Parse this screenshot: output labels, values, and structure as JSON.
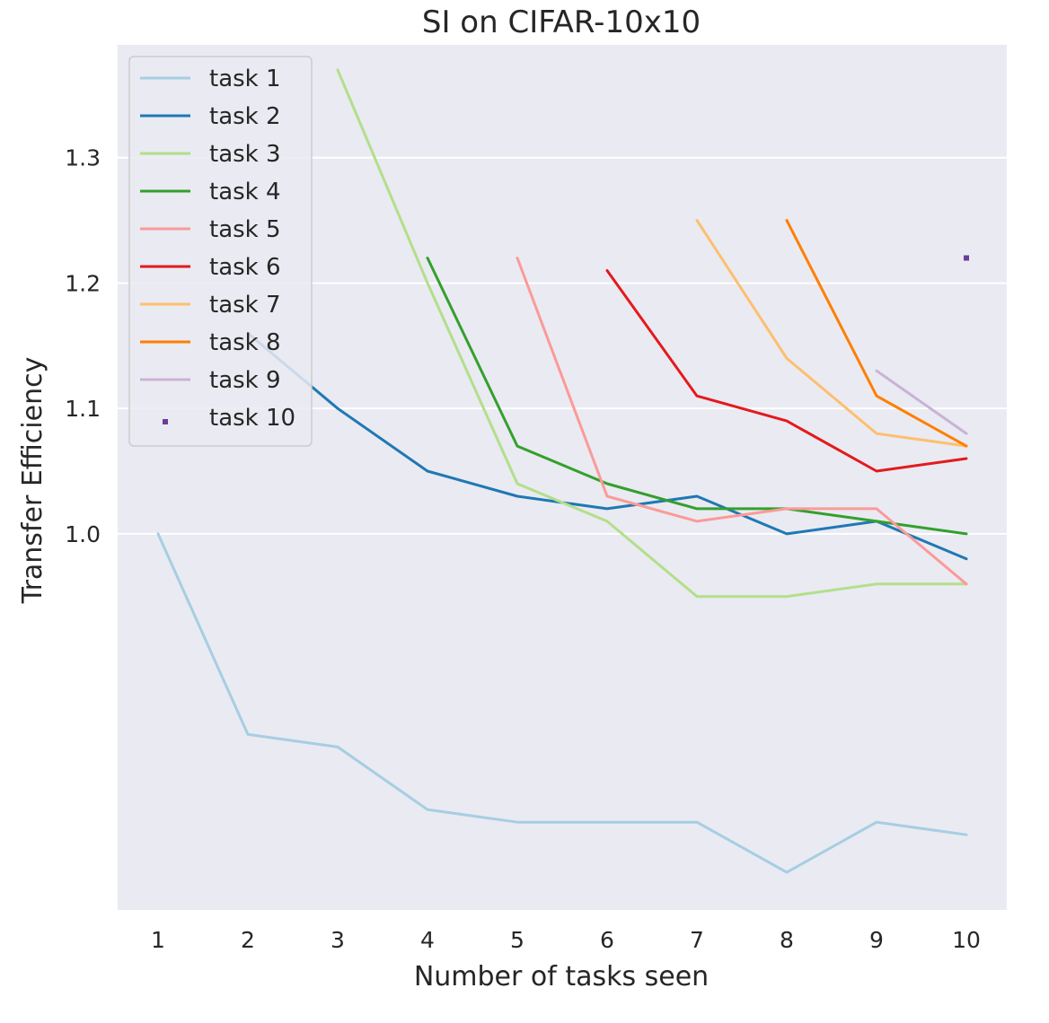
{
  "chart_data": {
    "type": "line",
    "title": "SI on CIFAR-10x10",
    "xlabel": "Number of tasks seen",
    "ylabel": "Transfer Efficiency",
    "x": [
      1,
      2,
      3,
      4,
      5,
      6,
      7,
      8,
      9,
      10
    ],
    "x_ticks": [
      "1",
      "2",
      "3",
      "4",
      "5",
      "6",
      "7",
      "8",
      "9",
      "10"
    ],
    "y_ticks": [
      {
        "value": 1.0,
        "label": "1.0"
      },
      {
        "value": 1.1,
        "label": "1.1"
      },
      {
        "value": 1.2,
        "label": "1.2"
      },
      {
        "value": 1.3,
        "label": "1.3"
      }
    ],
    "xlim": [
      0.55,
      10.45
    ],
    "ylim": [
      0.7,
      1.39
    ],
    "grid": true,
    "legend_position": "top-left",
    "series": [
      {
        "name": "task 1",
        "color": "#a6cee3",
        "x": [
          1,
          2,
          3,
          4,
          5,
          6,
          7,
          8,
          9,
          10
        ],
        "values": [
          1.0,
          0.84,
          0.83,
          0.78,
          0.77,
          0.77,
          0.77,
          0.73,
          0.77,
          0.76
        ]
      },
      {
        "name": "task 2",
        "color": "#1f78b4",
        "x": [
          2,
          3,
          4,
          5,
          6,
          7,
          8,
          9,
          10
        ],
        "values": [
          1.16,
          1.1,
          1.05,
          1.03,
          1.02,
          1.03,
          1.0,
          1.01,
          0.98
        ]
      },
      {
        "name": "task 3",
        "color": "#b2df8a",
        "x": [
          3,
          4,
          5,
          6,
          7,
          8,
          9,
          10
        ],
        "values": [
          1.37,
          1.2,
          1.04,
          1.01,
          0.95,
          0.95,
          0.96,
          0.96
        ]
      },
      {
        "name": "task 4",
        "color": "#33a02c",
        "x": [
          4,
          5,
          6,
          7,
          8,
          9,
          10
        ],
        "values": [
          1.22,
          1.07,
          1.04,
          1.02,
          1.02,
          1.01,
          1.0
        ]
      },
      {
        "name": "task 5",
        "color": "#fb9a99",
        "x": [
          5,
          6,
          7,
          8,
          9,
          10
        ],
        "values": [
          1.22,
          1.03,
          1.01,
          1.02,
          1.02,
          0.96
        ]
      },
      {
        "name": "task 6",
        "color": "#e31a1c",
        "x": [
          6,
          7,
          8,
          9,
          10
        ],
        "values": [
          1.21,
          1.11,
          1.09,
          1.05,
          1.06
        ]
      },
      {
        "name": "task 7",
        "color": "#fdbf6f",
        "x": [
          7,
          8,
          9,
          10
        ],
        "values": [
          1.25,
          1.14,
          1.08,
          1.07
        ]
      },
      {
        "name": "task 8",
        "color": "#ff7f00",
        "x": [
          8,
          9,
          10
        ],
        "values": [
          1.25,
          1.11,
          1.07
        ]
      },
      {
        "name": "task 9",
        "color": "#cab2d6",
        "x": [
          9,
          10
        ],
        "values": [
          1.13,
          1.08
        ]
      },
      {
        "name": "task 10",
        "color": "#6a3d9a",
        "x": [
          10
        ],
        "values": [
          1.22
        ],
        "marker": "point"
      }
    ]
  }
}
